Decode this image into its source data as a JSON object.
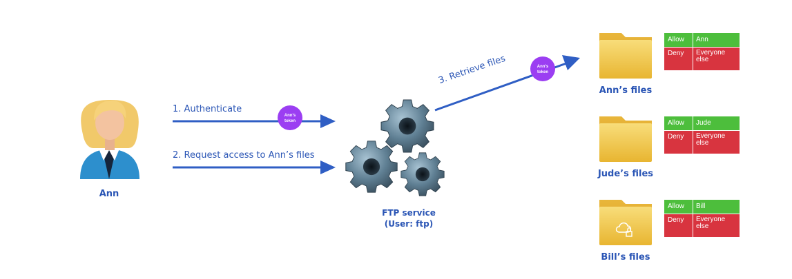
{
  "user": {
    "name": "Ann"
  },
  "steps": {
    "step1": "1.  Authenticate",
    "step2": "2. Request access to Ann’s files",
    "step3": "3. Retrieve files"
  },
  "tokens": {
    "token1": [
      "Ann’s",
      "token"
    ],
    "token2": [
      "Ann’s",
      "token"
    ]
  },
  "service": {
    "line1": "FTP service",
    "line2": "(User: ftp)"
  },
  "folders": [
    {
      "label": "Ann’s files",
      "acl": {
        "allow_label": "Allow",
        "allow_value": "Ann",
        "deny_label": "Deny",
        "deny_value": "Everyone else"
      }
    },
    {
      "label": "Jude’s files",
      "acl": {
        "allow_label": "Allow",
        "allow_value": "Jude",
        "deny_label": "Deny",
        "deny_value": "Everyone else"
      }
    },
    {
      "label": "Bill’s files",
      "acl": {
        "allow_label": "Allow",
        "allow_value": "Bill",
        "deny_label": "Deny",
        "deny_value": "Everyone else"
      }
    }
  ],
  "colors": {
    "arrow": "#2f5ec4",
    "label": "#2a55b5",
    "token": "#9b3ef2",
    "allow": "#4dbe3c",
    "deny": "#d8343f",
    "folder": "#f2c94c",
    "gear": "#5e7b8e"
  }
}
